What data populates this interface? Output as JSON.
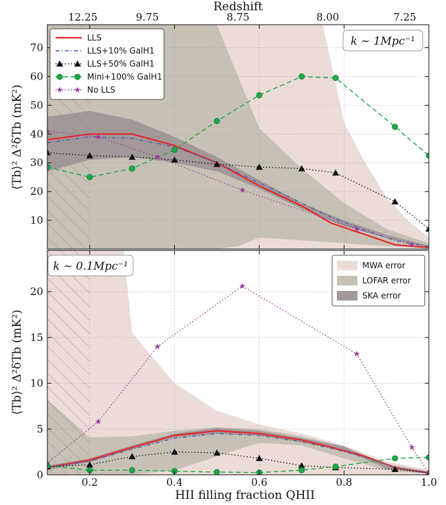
{
  "chart_data": [
    {
      "type": "line",
      "panel": "top",
      "annotation": "k ∼ 1Mpc⁻¹",
      "ylabel": "⟨Tb⟩² Δ²δTb (mK²)",
      "xlabel": "",
      "top_axis_label": "Redshift",
      "top_ticks": [
        {
          "label": "12.25",
          "x": 0.093
        },
        {
          "label": "9.75",
          "x": 0.262
        },
        {
          "label": "8.75",
          "x": 0.5
        },
        {
          "label": "8.00",
          "x": 0.735
        },
        {
          "label": "7.25",
          "x": 0.937
        }
      ],
      "xlim": [
        0.1,
        1.0
      ],
      "ylim": [
        0,
        78
      ],
      "yticks": [
        10,
        20,
        30,
        40,
        50,
        60,
        70
      ],
      "xticks": [
        0.2,
        0.4,
        0.6,
        0.8,
        1.0
      ],
      "legend_position": "top-left",
      "series": [
        {
          "name": "LLS",
          "color": "#e8262c",
          "style": "solid",
          "marker": "none",
          "x": [
            0.1,
            0.2,
            0.3,
            0.4,
            0.5,
            0.6,
            0.7,
            0.77,
            0.85,
            0.92,
            1.0
          ],
          "y": [
            38,
            40,
            40,
            36,
            30,
            22,
            15,
            9,
            5,
            1.5,
            0.5
          ]
        },
        {
          "name": "LLS+10% GalH1",
          "color": "#4a5fb0",
          "style": "dashdot",
          "marker": "none",
          "x": [
            0.1,
            0.2,
            0.3,
            0.4,
            0.5,
            0.6,
            0.7,
            0.77,
            0.85,
            0.92,
            1.0
          ],
          "y": [
            37,
            39,
            38.5,
            35.5,
            30,
            23,
            16,
            11,
            6.5,
            3,
            0.8
          ]
        },
        {
          "name": "LLS+50% GalH1",
          "color": "#111111",
          "style": "dotted",
          "marker": "triangle",
          "x": [
            0.1,
            0.2,
            0.3,
            0.4,
            0.5,
            0.6,
            0.7,
            0.78,
            0.92,
            1.0
          ],
          "y": [
            33.5,
            32.5,
            32,
            31,
            29.5,
            28.5,
            28,
            26.5,
            16.5,
            7
          ]
        },
        {
          "name": "Mini+100% GalH1",
          "color": "#1fa84a",
          "style": "dashed",
          "marker": "circle",
          "x": [
            0.1,
            0.2,
            0.3,
            0.4,
            0.5,
            0.6,
            0.7,
            0.78,
            0.92,
            1.0
          ],
          "y": [
            28.5,
            25,
            28,
            34.5,
            44.5,
            53.5,
            60,
            59.5,
            42.5,
            32.5
          ]
        },
        {
          "name": "No LLS",
          "color": "#9b3d9c",
          "style": "dotted",
          "marker": "star",
          "x": [
            0.1,
            0.22,
            0.36,
            0.56,
            0.83,
            0.96
          ],
          "y": [
            41,
            39,
            32,
            20.5,
            7,
            1.5
          ]
        }
      ],
      "error_bands": [
        {
          "name": "MWA error",
          "color": "#ecdcd8",
          "x": [
            0.1,
            0.2,
            0.3,
            0.4,
            0.5,
            0.6,
            0.7,
            0.75,
            0.8,
            0.85,
            0.9,
            0.95,
            1.0
          ],
          "low": [
            0,
            0,
            0,
            0,
            0,
            0,
            0,
            0,
            0,
            0,
            0,
            0,
            0
          ],
          "high": [
            78,
            78,
            78,
            78,
            78,
            78,
            78,
            78,
            44,
            30,
            18,
            10,
            4
          ]
        },
        {
          "name": "LOFAR error",
          "color": "#c7c1b5",
          "x": [
            0.1,
            0.2,
            0.3,
            0.4,
            0.5,
            0.55,
            0.6,
            0.7,
            0.8,
            0.9,
            1.0
          ],
          "low": [
            0,
            0,
            0,
            0,
            0,
            1,
            4,
            3,
            2,
            1,
            0.3
          ],
          "high": [
            78,
            78,
            78,
            78,
            78,
            60,
            42,
            28,
            16,
            7,
            2
          ]
        },
        {
          "name": "SKA error",
          "color": "#a29898",
          "x": [
            0.1,
            0.2,
            0.3,
            0.4,
            0.5,
            0.6,
            0.7,
            0.8,
            0.9,
            1.0
          ],
          "low": [
            27,
            31,
            32,
            30,
            27,
            21,
            14,
            8,
            4,
            0.3
          ],
          "high": [
            46,
            48,
            45,
            39,
            32,
            24,
            16,
            10,
            5,
            1.2
          ]
        }
      ]
    },
    {
      "type": "line",
      "panel": "bottom",
      "annotation": "k ∼ 0.1Mpc⁻¹",
      "ylabel": "⟨Tb⟩² Δ²δTb (mK²)",
      "xlabel": "HII filling fraction QHII",
      "xlim": [
        0.1,
        1.0
      ],
      "ylim": [
        0,
        24.5
      ],
      "yticks": [
        0,
        5,
        10,
        15,
        20
      ],
      "xticks": [
        0.2,
        0.4,
        0.6,
        0.8,
        1.0
      ],
      "xtick_labels": [
        "0.2",
        "0.4",
        "0.6",
        "0.8",
        "1.0"
      ],
      "legend_position": "top-right",
      "legend": [
        "MWA error",
        "LOFAR error",
        "SKA error"
      ],
      "series": [
        {
          "name": "LLS",
          "color": "#e8262c",
          "style": "solid",
          "marker": "none",
          "x": [
            0.1,
            0.2,
            0.3,
            0.4,
            0.5,
            0.6,
            0.7,
            0.77,
            0.85,
            0.92,
            1.0
          ],
          "y": [
            0.8,
            1.6,
            3.0,
            4.3,
            4.8,
            4.5,
            3.8,
            3.0,
            2.0,
            0.8,
            0.2
          ]
        },
        {
          "name": "LLS+10% GalH1",
          "color": "#4a5fb0",
          "style": "dashdot",
          "marker": "none",
          "x": [
            0.1,
            0.2,
            0.3,
            0.4,
            0.5,
            0.6,
            0.7,
            0.77,
            0.85,
            0.92,
            1.0
          ],
          "y": [
            0.8,
            1.5,
            2.8,
            4.0,
            4.5,
            4.3,
            3.6,
            2.9,
            1.9,
            0.8,
            0.2
          ]
        },
        {
          "name": "LLS+50% GalH1",
          "color": "#111111",
          "style": "dotted",
          "marker": "triangle",
          "x": [
            0.1,
            0.2,
            0.3,
            0.4,
            0.5,
            0.6,
            0.7,
            0.78,
            0.92,
            1.0
          ],
          "y": [
            0.9,
            1.1,
            2.0,
            2.5,
            2.4,
            1.8,
            1.0,
            0.8,
            0.6,
            0.2
          ]
        },
        {
          "name": "Mini+100% GalH1",
          "color": "#1fa84a",
          "style": "dashed",
          "marker": "circle",
          "x": [
            0.1,
            0.2,
            0.3,
            0.4,
            0.5,
            0.6,
            0.7,
            0.78,
            0.92,
            1.0
          ],
          "y": [
            1.0,
            0.5,
            0.5,
            0.4,
            0.3,
            0.25,
            0.5,
            0.9,
            1.8,
            1.9
          ]
        },
        {
          "name": "No LLS",
          "color": "#9b3d9c",
          "style": "dotted",
          "marker": "star",
          "x": [
            0.1,
            0.22,
            0.36,
            0.56,
            0.83,
            0.96,
            1.0
          ],
          "y": [
            1.3,
            5.8,
            14.0,
            20.6,
            13.2,
            3.0,
            0.2
          ]
        }
      ],
      "error_bands": [
        {
          "name": "MWA error",
          "color": "#ecdcd8",
          "x": [
            0.1,
            0.15,
            0.2,
            0.28,
            0.3,
            0.4,
            0.5,
            0.6,
            0.7,
            0.8,
            0.9,
            1.0
          ],
          "low": [
            0,
            0,
            0,
            0,
            0,
            0,
            0,
            0,
            0,
            0,
            0,
            0
          ],
          "high": [
            24.5,
            24.5,
            24.5,
            24.5,
            15.5,
            10,
            7,
            5.5,
            4.5,
            3.2,
            1.5,
            0.5
          ]
        },
        {
          "name": "LOFAR error",
          "color": "#c7c1b5",
          "x": [
            0.1,
            0.2,
            0.3,
            0.4,
            0.5,
            0.6,
            0.7,
            0.8,
            0.9,
            1.0
          ],
          "low": [
            0,
            0,
            0,
            0.5,
            2.0,
            3.5,
            3.2,
            1.8,
            0.5,
            0.1
          ],
          "high": [
            8.2,
            4.1,
            4.2,
            4.8,
            5.2,
            5.0,
            4.2,
            3.1,
            1.2,
            0.4
          ]
        },
        {
          "name": "SKA error",
          "color": "#a29898",
          "x": [
            0.1,
            0.2,
            0.3,
            0.4,
            0.5,
            0.6,
            0.7,
            0.8,
            0.9,
            1.0
          ],
          "low": [
            0.5,
            1.4,
            2.8,
            4.1,
            4.5,
            4.3,
            3.6,
            2.7,
            0.7,
            0.15
          ],
          "high": [
            1.0,
            1.8,
            3.2,
            4.5,
            5.1,
            4.8,
            4.0,
            3.1,
            1.0,
            0.3
          ]
        }
      ]
    }
  ]
}
